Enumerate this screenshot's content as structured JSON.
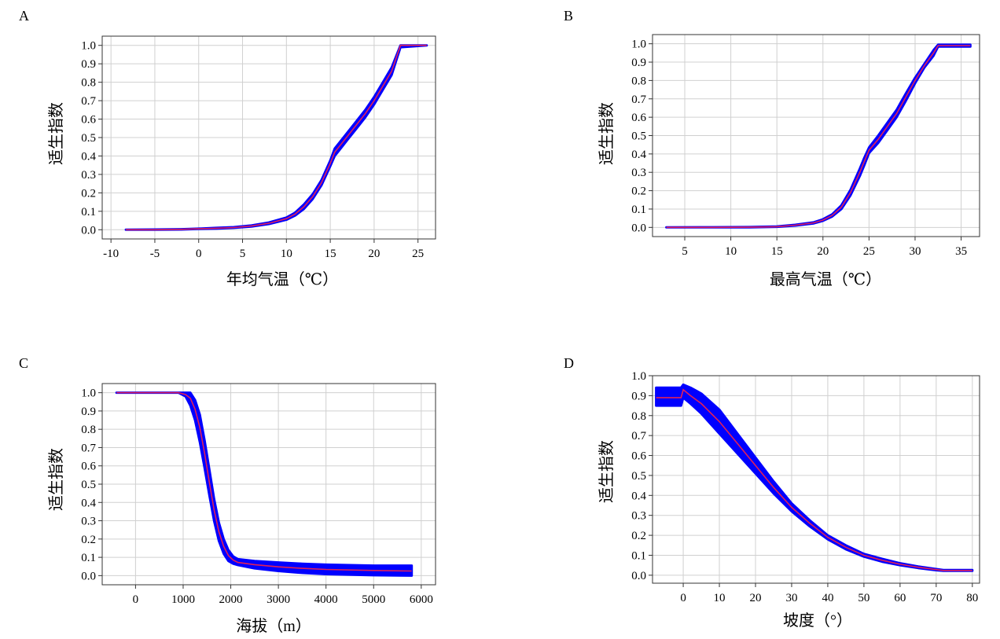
{
  "chart_data": [
    {
      "panel": "A",
      "type": "line",
      "xlabel": "年均气温（℃）",
      "ylabel": "适生指数",
      "xlim": [
        -11,
        27
      ],
      "ylim": [
        -0.05,
        1.05
      ],
      "xticks": [
        -10,
        -5,
        0,
        5,
        10,
        15,
        20,
        25
      ],
      "yticks": [
        0.0,
        0.1,
        0.2,
        0.3,
        0.4,
        0.5,
        0.6,
        0.7,
        0.8,
        0.9,
        1.0
      ],
      "grid": true,
      "series": [
        {
          "role": "mean",
          "color": "#e0205a",
          "x": [
            -8.3,
            -5,
            -2,
            0,
            2,
            4,
            6,
            8,
            10,
            11,
            12,
            13,
            14,
            15,
            15.5,
            16,
            17,
            18,
            19,
            20,
            21,
            22,
            23,
            26
          ],
          "y": [
            0,
            0,
            0.002,
            0.005,
            0.008,
            0.012,
            0.02,
            0.035,
            0.06,
            0.085,
            0.125,
            0.18,
            0.255,
            0.36,
            0.42,
            0.45,
            0.51,
            0.57,
            0.63,
            0.7,
            0.78,
            0.86,
            1.0,
            1.0
          ]
        },
        {
          "role": "band",
          "color": "#0000ff",
          "x": [
            -8.3,
            -5,
            -2,
            0,
            2,
            4,
            6,
            8,
            10,
            11,
            12,
            13,
            14,
            15,
            15.5,
            16,
            17,
            18,
            19,
            20,
            21,
            22,
            23,
            26
          ],
          "lower": [
            0,
            0,
            0.001,
            0.004,
            0.006,
            0.01,
            0.017,
            0.031,
            0.054,
            0.077,
            0.113,
            0.167,
            0.241,
            0.345,
            0.4,
            0.43,
            0.49,
            0.55,
            0.61,
            0.68,
            0.76,
            0.84,
            0.99,
            1.0
          ],
          "upper": [
            0,
            0.001,
            0.003,
            0.006,
            0.01,
            0.014,
            0.023,
            0.039,
            0.066,
            0.093,
            0.137,
            0.193,
            0.269,
            0.375,
            0.44,
            0.47,
            0.53,
            0.59,
            0.65,
            0.72,
            0.8,
            0.88,
            1.0,
            1.0
          ]
        }
      ]
    },
    {
      "panel": "B",
      "type": "line",
      "xlabel": "最高气温（℃）",
      "ylabel": "适生指数",
      "xlim": [
        1.5,
        37
      ],
      "ylim": [
        -0.05,
        1.05
      ],
      "xticks": [
        5,
        10,
        15,
        20,
        25,
        30,
        35
      ],
      "yticks": [
        0.0,
        0.1,
        0.2,
        0.3,
        0.4,
        0.5,
        0.6,
        0.7,
        0.8,
        0.9,
        1.0
      ],
      "grid": true,
      "series": [
        {
          "role": "mean",
          "color": "#e0205a",
          "x": [
            3,
            8,
            12,
            15,
            17,
            19,
            20,
            21,
            22,
            23,
            24,
            24.5,
            25,
            26,
            27,
            28,
            29,
            30,
            31,
            32,
            32.5,
            36
          ],
          "y": [
            0,
            0,
            0.001,
            0.004,
            0.012,
            0.025,
            0.04,
            0.065,
            0.11,
            0.19,
            0.3,
            0.36,
            0.42,
            0.48,
            0.55,
            0.62,
            0.71,
            0.8,
            0.88,
            0.95,
            0.99,
            0.99
          ]
        },
        {
          "role": "band",
          "color": "#0000ff",
          "x": [
            3,
            8,
            12,
            15,
            17,
            19,
            20,
            21,
            22,
            23,
            24,
            24.5,
            25,
            26,
            27,
            28,
            29,
            30,
            31,
            32,
            32.5,
            36
          ],
          "lower": [
            0,
            0,
            0,
            0.003,
            0.01,
            0.022,
            0.036,
            0.059,
            0.1,
            0.175,
            0.28,
            0.34,
            0.405,
            0.46,
            0.53,
            0.6,
            0.69,
            0.785,
            0.87,
            0.935,
            0.985,
            0.985
          ],
          "upper": [
            0,
            0.001,
            0.002,
            0.005,
            0.014,
            0.028,
            0.044,
            0.071,
            0.12,
            0.205,
            0.32,
            0.38,
            0.435,
            0.5,
            0.57,
            0.64,
            0.73,
            0.815,
            0.89,
            0.965,
            0.995,
            0.995
          ]
        }
      ]
    },
    {
      "panel": "C",
      "type": "line",
      "xlabel": "海拔（m）",
      "ylabel": "适生指数",
      "xlim": [
        -700,
        6300
      ],
      "ylim": [
        -0.05,
        1.05
      ],
      "xticks": [
        0,
        1000,
        2000,
        3000,
        4000,
        5000,
        6000
      ],
      "yticks": [
        0.0,
        0.1,
        0.2,
        0.3,
        0.4,
        0.5,
        0.6,
        0.7,
        0.8,
        0.9,
        1.0
      ],
      "grid": true,
      "series": [
        {
          "role": "mean",
          "color": "#e0205a",
          "x": [
            -400,
            900,
            1050,
            1150,
            1250,
            1350,
            1450,
            1550,
            1650,
            1750,
            1850,
            1950,
            2050,
            2150,
            2500,
            3000,
            3500,
            4000,
            5000,
            5800
          ],
          "y": [
            1.0,
            1.0,
            0.99,
            0.97,
            0.91,
            0.81,
            0.67,
            0.51,
            0.36,
            0.24,
            0.16,
            0.11,
            0.085,
            0.072,
            0.06,
            0.048,
            0.04,
            0.034,
            0.028,
            0.025
          ]
        },
        {
          "role": "band",
          "color": "#0000ff",
          "x": [
            -400,
            900,
            1050,
            1150,
            1250,
            1350,
            1450,
            1550,
            1650,
            1750,
            1850,
            1950,
            2050,
            2150,
            2500,
            3000,
            3500,
            4000,
            5000,
            5800
          ],
          "lower": [
            1.0,
            1.0,
            0.98,
            0.93,
            0.85,
            0.73,
            0.59,
            0.44,
            0.3,
            0.19,
            0.12,
            0.08,
            0.065,
            0.058,
            0.04,
            0.025,
            0.015,
            0.008,
            0.002,
            0.0
          ],
          "upper": [
            1.0,
            1.0,
            1.0,
            1.0,
            0.96,
            0.88,
            0.74,
            0.58,
            0.42,
            0.29,
            0.2,
            0.14,
            0.105,
            0.09,
            0.08,
            0.072,
            0.065,
            0.06,
            0.055,
            0.055
          ]
        }
      ]
    },
    {
      "panel": "D",
      "type": "line",
      "xlabel": "坡度（°）",
      "ylabel": "适生指数",
      "xlim": [
        -8.5,
        82
      ],
      "ylim": [
        -0.04,
        1.0
      ],
      "xticks": [
        0,
        10,
        20,
        30,
        40,
        50,
        60,
        70,
        80
      ],
      "yticks": [
        0.0,
        0.1,
        0.2,
        0.3,
        0.4,
        0.5,
        0.6,
        0.7,
        0.8,
        0.9,
        1.0
      ],
      "grid": true,
      "series": [
        {
          "role": "mean",
          "color": "#e0205a",
          "x": [
            -7.5,
            -0.6,
            0,
            2,
            5,
            10,
            15,
            20,
            25,
            30,
            35,
            40,
            45,
            50,
            55,
            60,
            65,
            70,
            72,
            80
          ],
          "y": [
            0.89,
            0.89,
            0.93,
            0.9,
            0.86,
            0.77,
            0.66,
            0.55,
            0.44,
            0.34,
            0.26,
            0.19,
            0.14,
            0.1,
            0.075,
            0.055,
            0.04,
            0.028,
            0.024,
            0.024
          ]
        },
        {
          "role": "band",
          "color": "#0000ff",
          "x": [
            -7.5,
            -0.6,
            0,
            2,
            5,
            10,
            15,
            20,
            25,
            30,
            35,
            40,
            45,
            50,
            55,
            60,
            65,
            70,
            72,
            80
          ],
          "lower": [
            0.85,
            0.85,
            0.89,
            0.86,
            0.81,
            0.71,
            0.61,
            0.51,
            0.41,
            0.32,
            0.245,
            0.18,
            0.13,
            0.093,
            0.068,
            0.05,
            0.036,
            0.025,
            0.022,
            0.022
          ],
          "upper": [
            0.94,
            0.94,
            0.955,
            0.94,
            0.91,
            0.83,
            0.71,
            0.59,
            0.47,
            0.36,
            0.275,
            0.2,
            0.15,
            0.107,
            0.082,
            0.06,
            0.044,
            0.031,
            0.026,
            0.026
          ]
        }
      ]
    }
  ]
}
